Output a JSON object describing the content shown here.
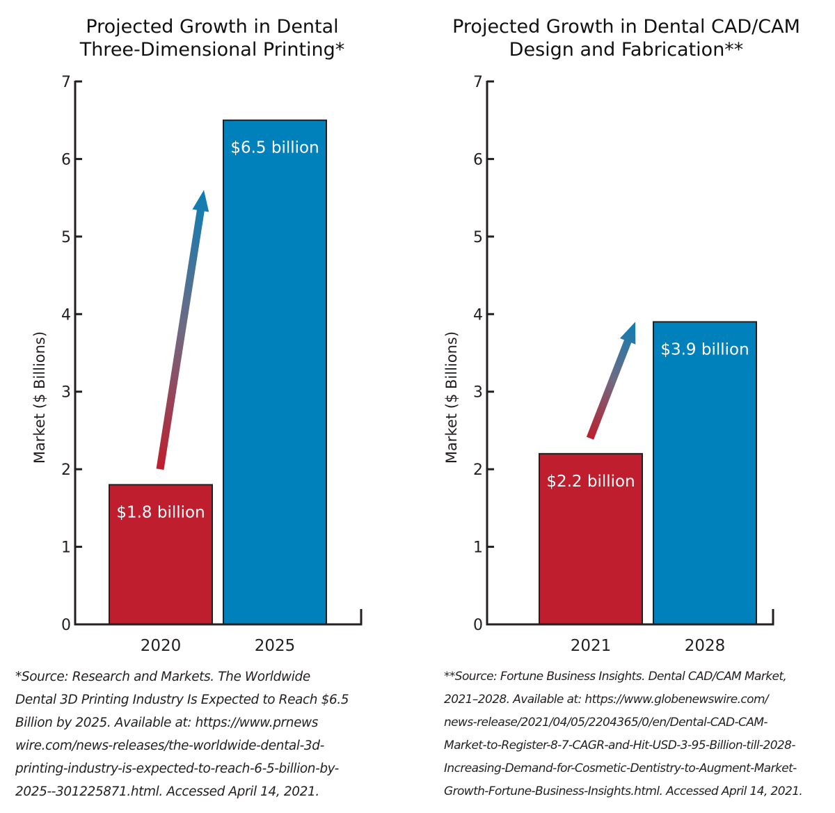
{
  "chart_data": [
    {
      "type": "bar",
      "title": "Projected Growth in Dental Three-Dimensional Printing*",
      "title_lines": [
        "Projected Growth in Dental",
        "Three-Dimensional Printing*"
      ],
      "xlabel": "",
      "ylabel": "Market ($ Billions)",
      "ylim": [
        0,
        7
      ],
      "yticks": [
        0,
        1,
        2,
        3,
        4,
        5,
        6,
        7
      ],
      "grid": false,
      "categories": [
        "2020",
        "2025"
      ],
      "values": [
        1.8,
        6.5
      ],
      "data_labels": [
        "$1.8 billion",
        "$6.5 billion"
      ],
      "bar_colors": [
        "#be1e2d",
        "#0081bc"
      ],
      "annotation": "gradient growth arrow from 2020 bar to 2025 bar",
      "arrow": {
        "from_value": 2.0,
        "to_value": 5.6,
        "color_start": "#be1e2d",
        "color_end": "#0a7fb5"
      },
      "source_lines": [
        "*Source: Research and Markets. The Worldwide",
        "Dental 3D Printing Industry Is Expected to Reach $6.5",
        "Billion by 2025. Available at: https://www.prnews",
        "wire.com/news-releases/the-worldwide-dental-3d-",
        "printing-industry-is-expected-to-reach-6-5-billion-by-",
        "2025--301225871.html. Accessed April 14, 2021."
      ]
    },
    {
      "type": "bar",
      "title": "Projected Growth in Dental CAD/CAM Design and Fabrication**",
      "title_lines": [
        "Projected Growth in Dental CAD/CAM",
        "Design and Fabrication**"
      ],
      "xlabel": "",
      "ylabel": "Market ($ Billions)",
      "ylim": [
        0,
        7
      ],
      "yticks": [
        0,
        1,
        2,
        3,
        4,
        5,
        6,
        7
      ],
      "grid": false,
      "categories": [
        "2021",
        "2028"
      ],
      "values": [
        2.2,
        3.9
      ],
      "data_labels": [
        "$2.2 billion",
        "$3.9 billion"
      ],
      "bar_colors": [
        "#be1e2d",
        "#0081bc"
      ],
      "annotation": "gradient growth arrow from 2021 bar to 2028 bar",
      "arrow": {
        "from_value": 2.4,
        "to_value": 3.9,
        "color_start": "#be1e2d",
        "color_end": "#0a7fb5"
      },
      "source_lines": [
        "**Source: Fortune Business Insights. Dental CAD/CAM Market,",
        "2021–2028. Available at: https://www.globenewswire.com/",
        "news-release/2021/04/05/2204365/0/en/Dental-CAD-CAM-",
        "Market-to-Register-8-7-CAGR-and-Hit-USD-3-95-Billion-till-2028-",
        "Increasing-Demand-for-Cosmetic-Dentistry-to-Augment-Market-",
        "Growth-Fortune-Business-Insights.html. Accessed April 14, 2021."
      ]
    }
  ]
}
